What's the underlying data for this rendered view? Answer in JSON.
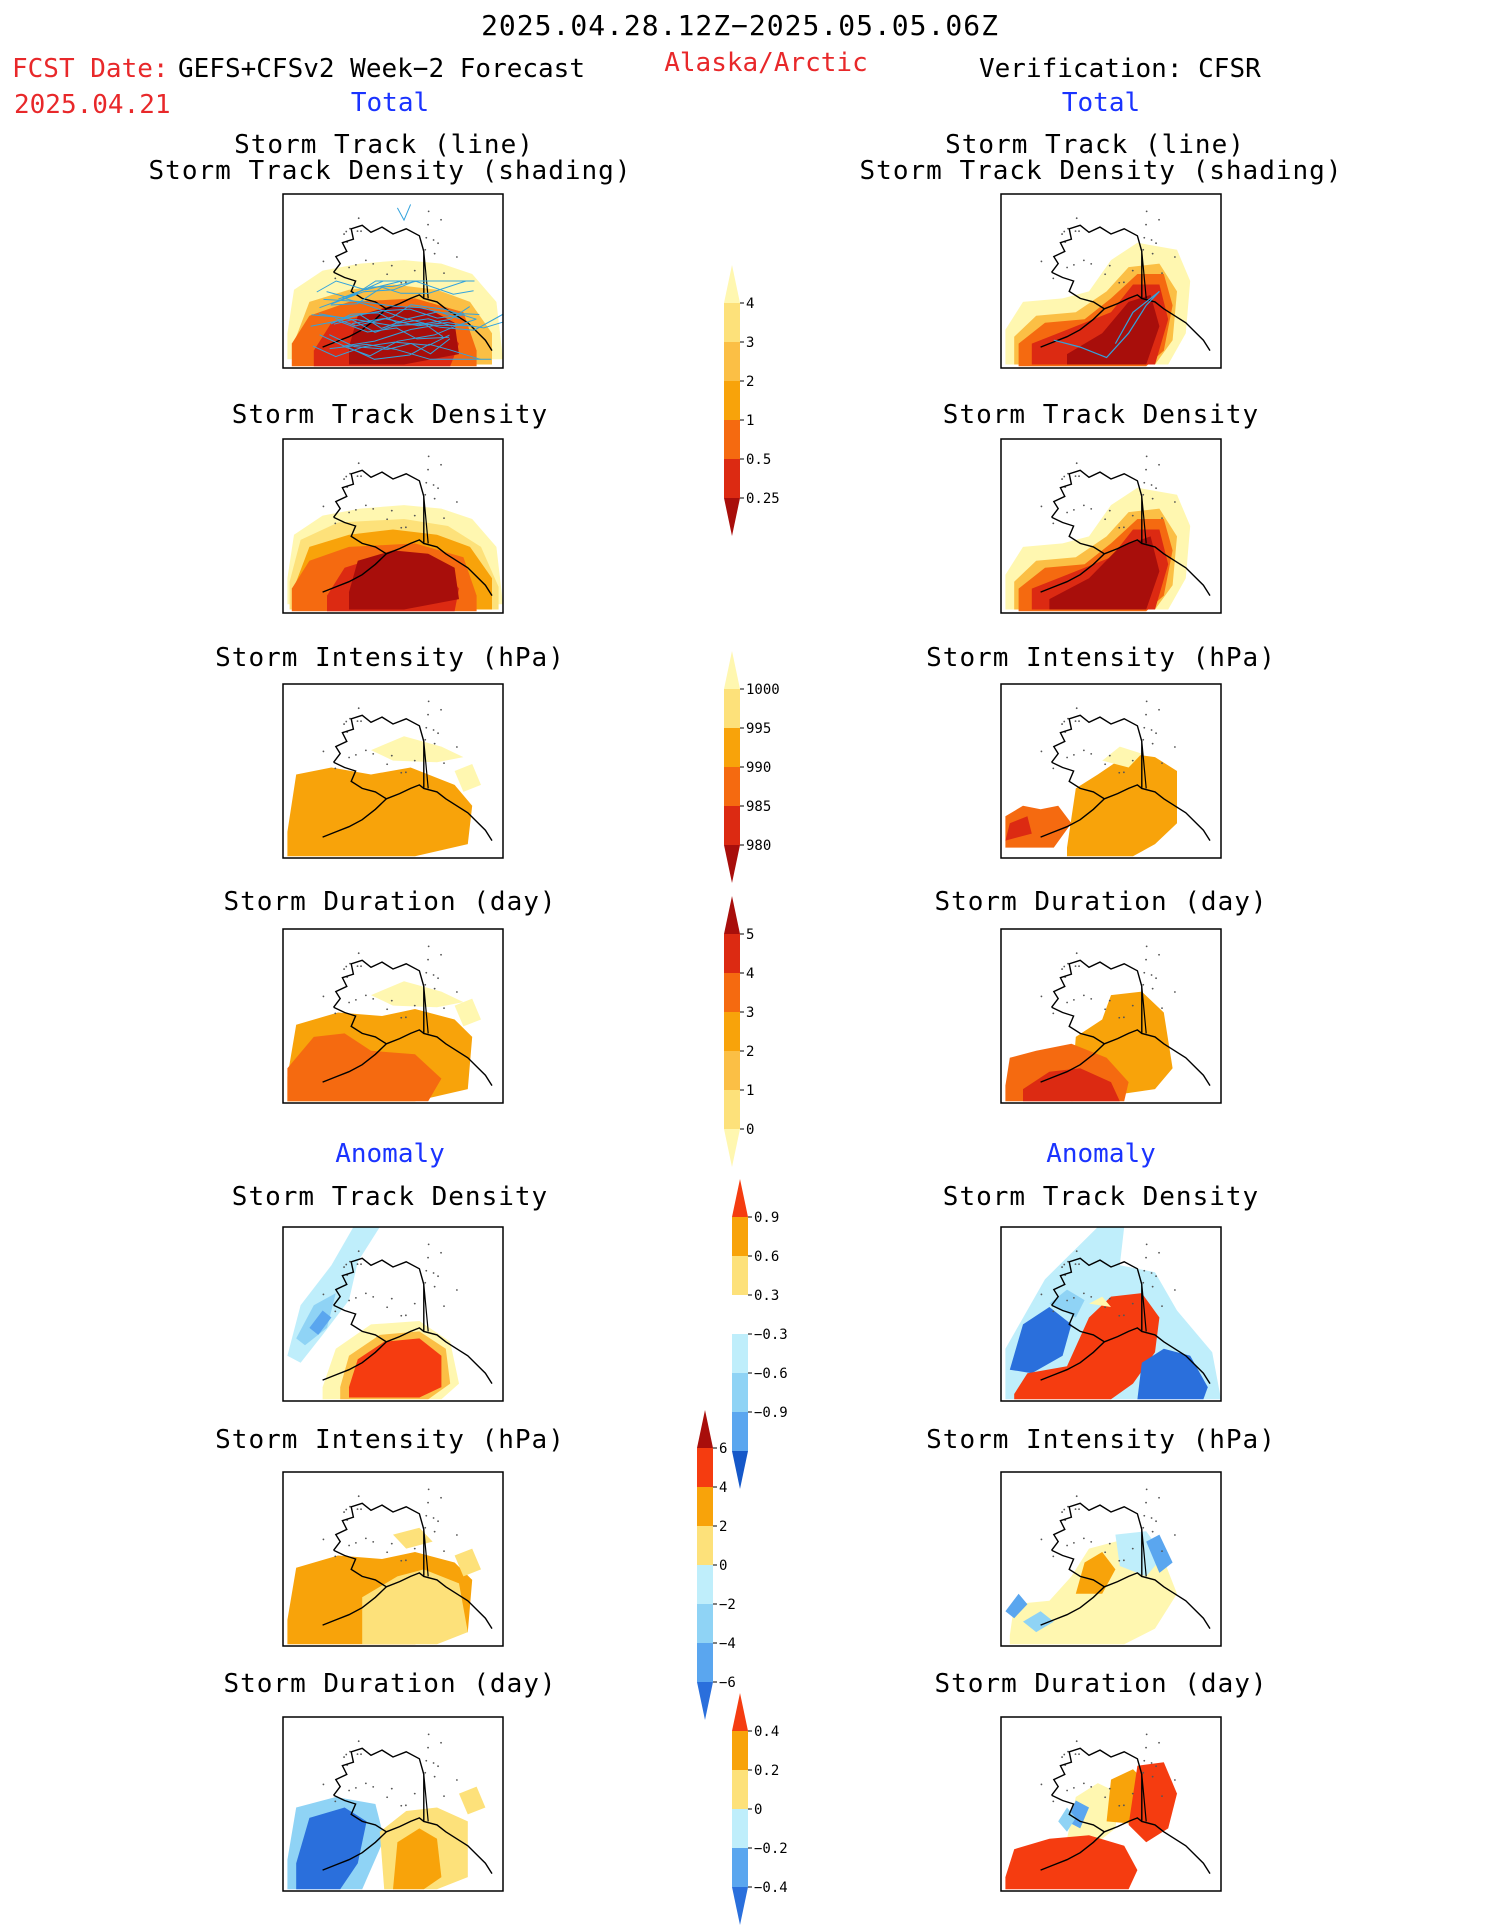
{
  "header": {
    "date_range": "2025.04.28.12Z−2025.05.05.06Z",
    "region": "Alaska/Arctic",
    "fcst_label": "FCST Date:",
    "fcst_model": "GEFS+CFSv2 Week−2 Forecast",
    "fcst_date": "2025.04.21",
    "verification": "Verification: CFSR"
  },
  "sections": {
    "total": "Total",
    "anomaly": "Anomaly"
  },
  "panel_titles": {
    "track_line": "Storm Track (line)",
    "track_density_shading": "Storm Track Density (shading)",
    "track_density": "Storm Track Density",
    "intensity": "Storm Intensity (hPa)",
    "duration": "Storm Duration (day)"
  },
  "colors": {
    "title_red": "#e8282a",
    "section_blue": "#1a33ff",
    "pale_yellow": "#fff7b0",
    "yellow": "#fde17a",
    "light_orange": "#fbbf45",
    "orange": "#f8a30a",
    "dark_orange": "#f56a10",
    "red": "#dc2a12",
    "dark_red": "#a80e0b",
    "light_blue": "#bfeefb",
    "sky_blue": "#8fd3f5",
    "mid_blue": "#5aa6ef",
    "blue": "#2a6fdc",
    "dark_blue": "#1558c9",
    "track_line": "#33a3dd"
  },
  "chart_data": [
    {
      "type": "heatmap",
      "name": "Total colorbar: storm track density",
      "levels": [
        0.25,
        0.5,
        1,
        2,
        3,
        4
      ],
      "tick_labels": [
        "4",
        "3",
        "2",
        "1",
        "0.5",
        "0.25"
      ],
      "colors": [
        "#fff7b0",
        "#fde17a",
        "#fbbf45",
        "#f8a30a",
        "#f56a10",
        "#dc2a12",
        "#a80e0b"
      ]
    },
    {
      "type": "heatmap",
      "name": "Total colorbar: storm intensity (hPa)",
      "levels": [
        1000,
        995,
        990,
        985,
        980
      ],
      "tick_labels": [
        "1000",
        "995",
        "990",
        "985",
        "980"
      ],
      "colors": [
        "#fff7b0",
        "#fde17a",
        "#f8a30a",
        "#f56a10",
        "#dc2a12",
        "#a80e0b"
      ]
    },
    {
      "type": "heatmap",
      "name": "Total colorbar: storm duration (day)",
      "levels": [
        5,
        4,
        3,
        2,
        1,
        0
      ],
      "tick_labels": [
        "5",
        "4",
        "3",
        "2",
        "1",
        "0"
      ],
      "colors": [
        "#a80e0b",
        "#dc2a12",
        "#f56a10",
        "#f8a30a",
        "#fbbf45",
        "#fde17a",
        "#fff7b0"
      ]
    },
    {
      "type": "heatmap",
      "name": "Anomaly colorbar: storm track density",
      "levels": [
        0.9,
        0.6,
        0.3,
        -0.3,
        -0.6,
        -0.9
      ],
      "tick_labels": [
        "0.9",
        "0.6",
        "0.3",
        "−0.3",
        "−0.6",
        "−0.9"
      ],
      "colors": [
        "#f53c10",
        "#f8a30a",
        "#fde17a",
        "#ffffff",
        "#bfeefb",
        "#8fd3f5",
        "#5aa6ef",
        "#1558c9"
      ]
    },
    {
      "type": "heatmap",
      "name": "Anomaly colorbar: storm intensity (hPa)",
      "levels": [
        6,
        4,
        2,
        0,
        -2,
        -4,
        -6
      ],
      "tick_labels": [
        "6",
        "4",
        "2",
        "0",
        "−2",
        "−4",
        "−6"
      ],
      "colors": [
        "#a80e0b",
        "#f53c10",
        "#f8a30a",
        "#fde17a",
        "#bfeefb",
        "#8fd3f5",
        "#5aa6ef",
        "#2a6fdc"
      ]
    },
    {
      "type": "heatmap",
      "name": "Anomaly colorbar: storm duration (day)",
      "levels": [
        0.4,
        0.2,
        0,
        -0.2,
        -0.4
      ],
      "tick_labels": [
        "0.4",
        "0.2",
        "0",
        "−0.2",
        "−0.4"
      ],
      "colors": [
        "#f53c10",
        "#f8a30a",
        "#fde17a",
        "#bfeefb",
        "#5aa6ef",
        "#2a6fdc"
      ]
    }
  ]
}
